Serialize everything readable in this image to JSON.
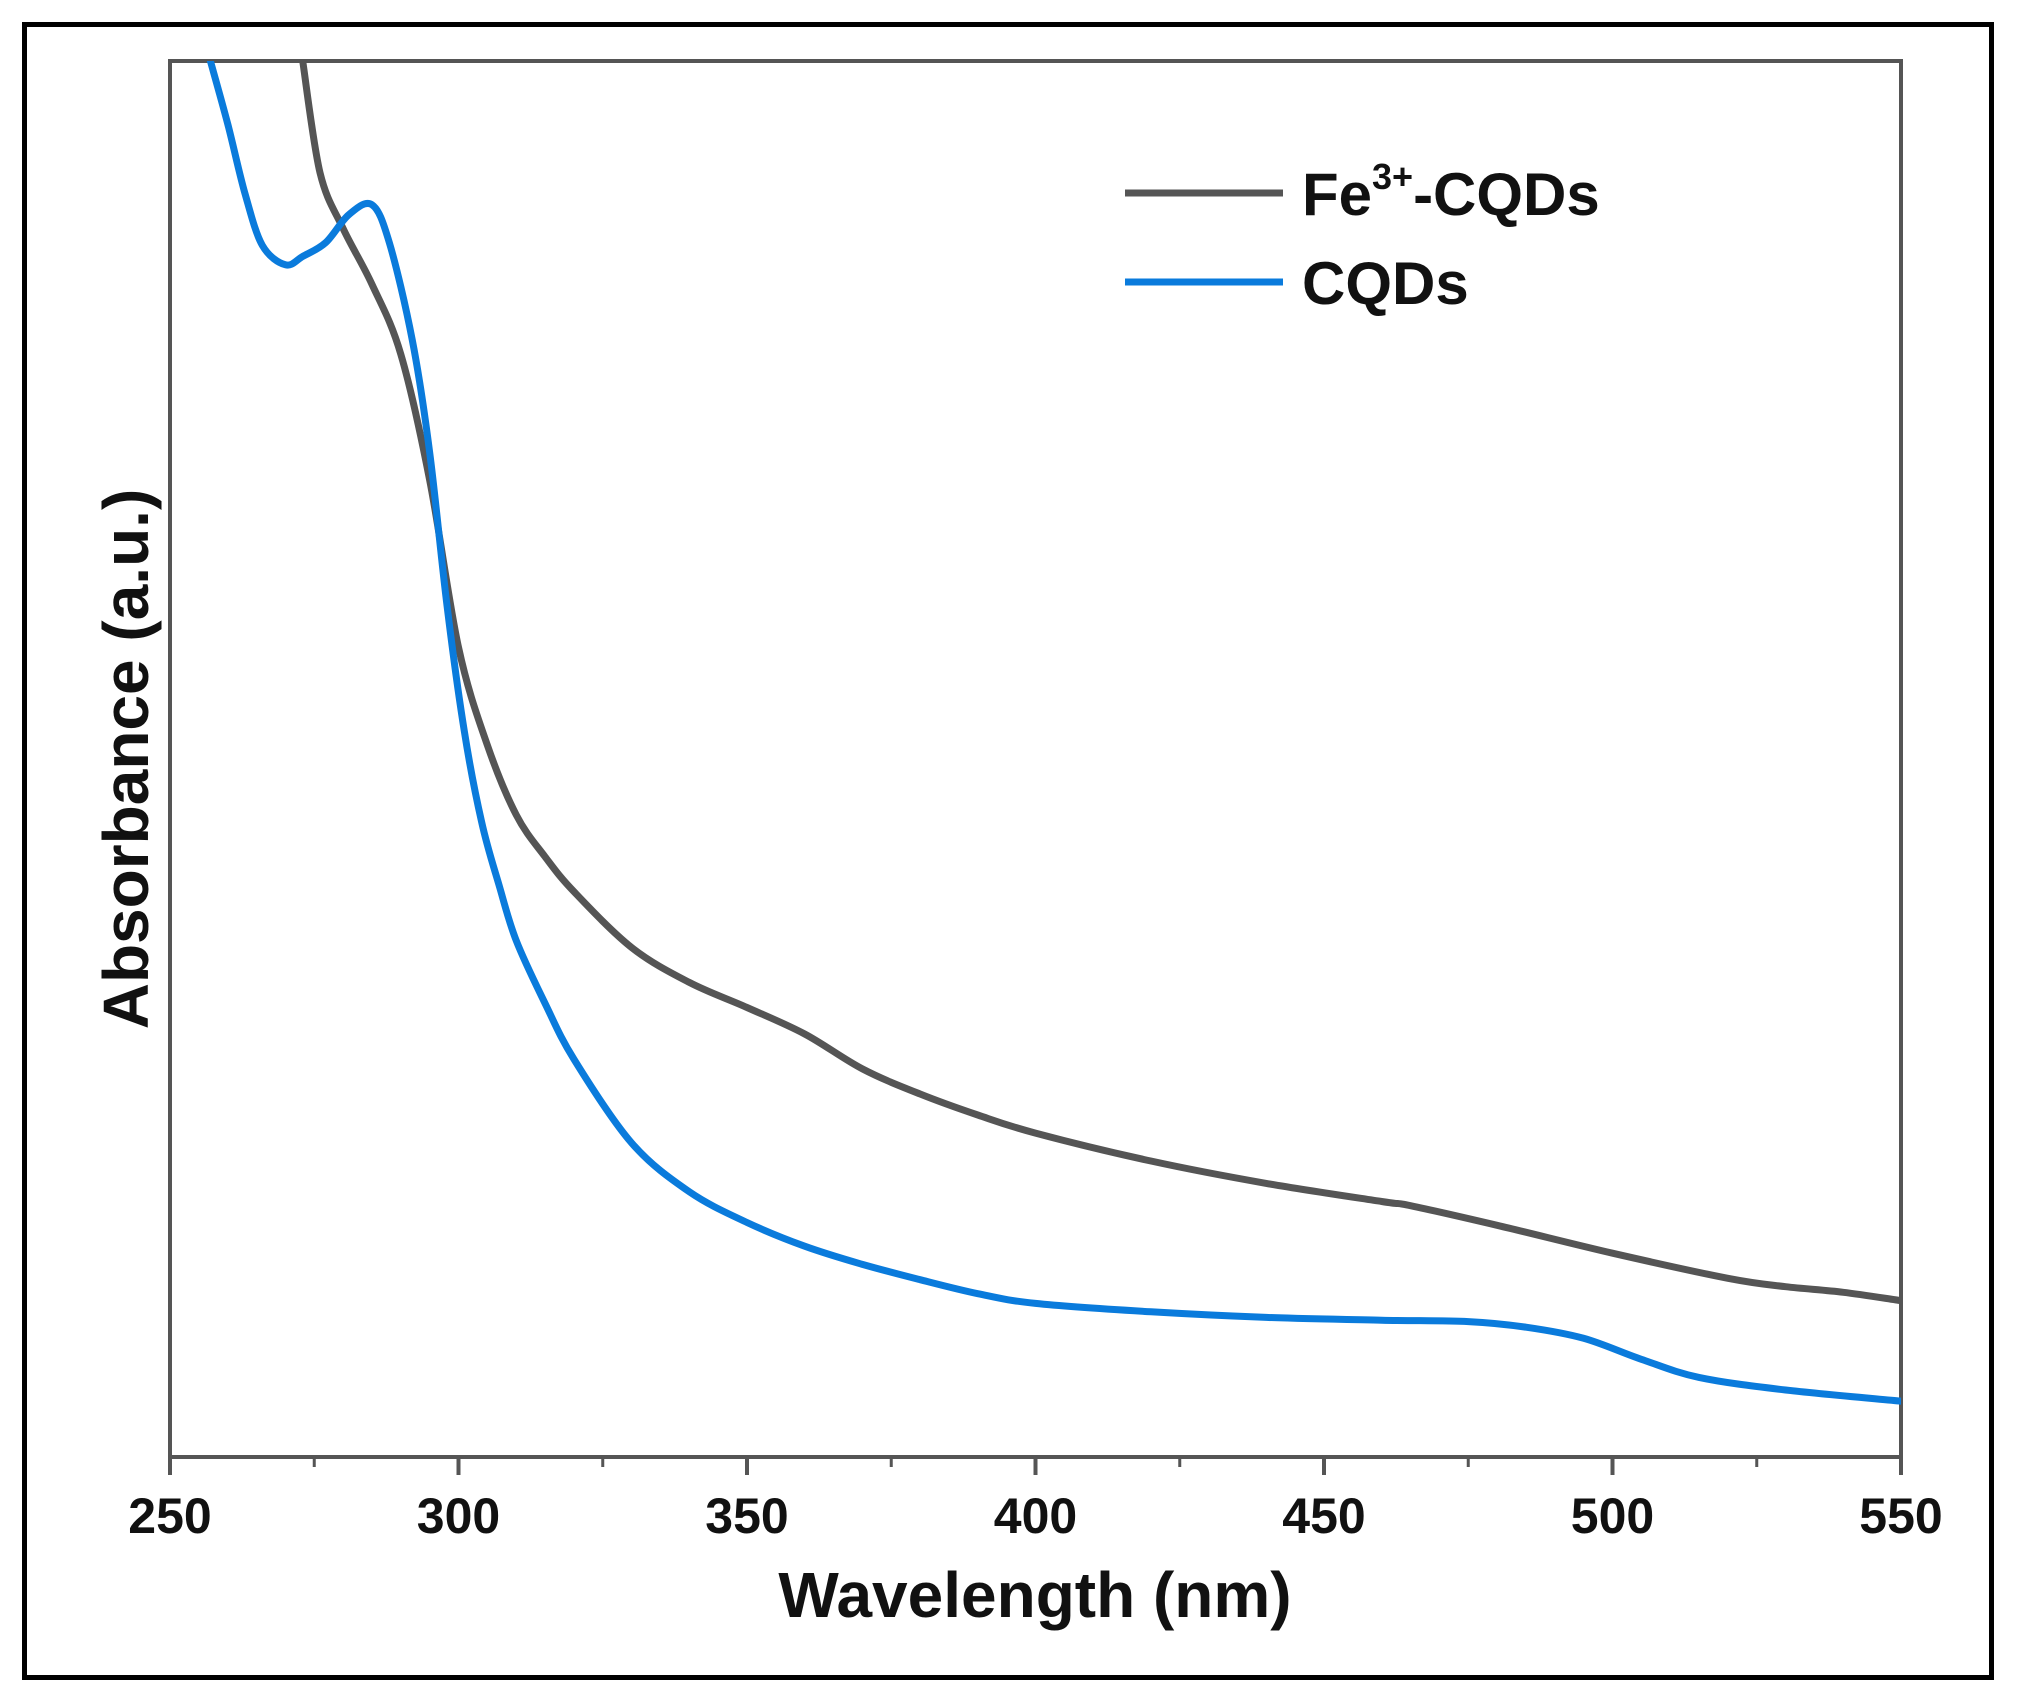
{
  "chart_data": {
    "type": "line",
    "title": "",
    "xlabel": "Wavelength (nm)",
    "ylabel": "Absorbance (a.u.)",
    "xlim": [
      250,
      550
    ],
    "ylim": [
      0,
      1
    ],
    "xticks": [
      250,
      300,
      350,
      400,
      450,
      500,
      550
    ],
    "xtick_labels": [
      "250",
      "300",
      "350",
      "400",
      "450",
      "500",
      "550"
    ],
    "grid": false,
    "legend_position": "top-right",
    "series": [
      {
        "name": "Fe3+-CQDs",
        "label_main": "Fe",
        "label_sup": "3+",
        "label_rest": "-CQDs",
        "color": "#555555",
        "x": [
          273,
          276,
          280,
          285,
          290,
          295,
          300,
          305,
          310,
          315,
          320,
          330,
          340,
          350,
          360,
          370,
          380,
          390,
          400,
          420,
          440,
          460,
          465,
          480,
          500,
          520,
          530,
          540,
          550
        ],
        "y": [
          1.0,
          0.92,
          0.88,
          0.84,
          0.79,
          0.7,
          0.58,
          0.51,
          0.46,
          0.43,
          0.405,
          0.365,
          0.34,
          0.322,
          0.303,
          0.278,
          0.26,
          0.245,
          0.232,
          0.212,
          0.196,
          0.183,
          0.18,
          0.166,
          0.146,
          0.128,
          0.122,
          0.118,
          0.112
        ]
      },
      {
        "name": "CQDs",
        "color": "#0a7bdc",
        "x": [
          257,
          260,
          263,
          266,
          270,
          273,
          277,
          281,
          285,
          288,
          292,
          295,
          298,
          301,
          304,
          307,
          310,
          315,
          320,
          330,
          340,
          350,
          360,
          370,
          380,
          390,
          400,
          420,
          440,
          460,
          475,
          485,
          495,
          505,
          515,
          530,
          550
        ],
        "y": [
          1.0,
          0.955,
          0.905,
          0.868,
          0.854,
          0.86,
          0.87,
          0.89,
          0.897,
          0.87,
          0.8,
          0.72,
          0.61,
          0.52,
          0.455,
          0.41,
          0.37,
          0.325,
          0.285,
          0.225,
          0.19,
          0.168,
          0.151,
          0.138,
          0.127,
          0.117,
          0.11,
          0.104,
          0.1,
          0.098,
          0.097,
          0.093,
          0.085,
          0.07,
          0.057,
          0.048,
          0.04
        ]
      }
    ]
  }
}
